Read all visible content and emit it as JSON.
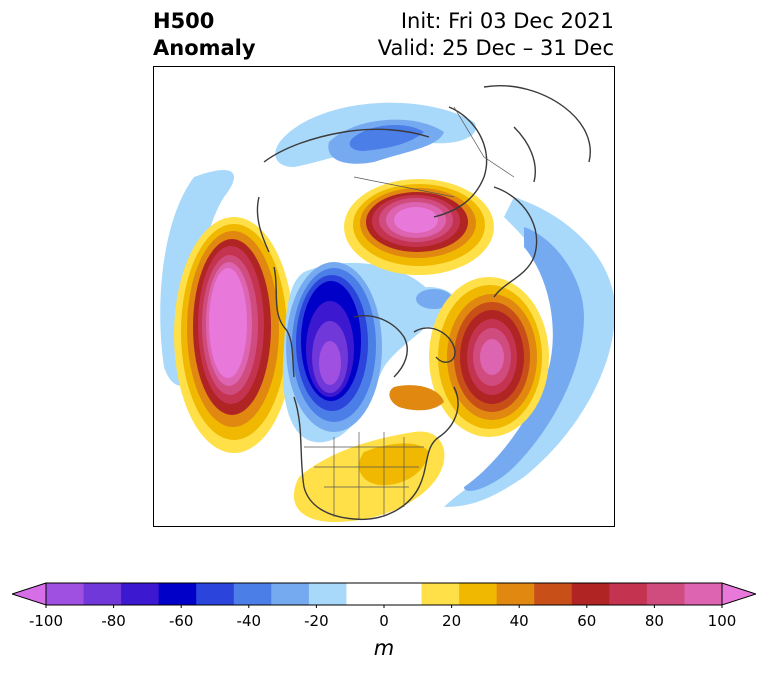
{
  "title": {
    "left_line1": "H500",
    "left_line2": "Anomaly",
    "right_line1": "Init: Fri 03 Dec 2021",
    "right_line2": "Valid: 25 Dec – 31 Dec"
  },
  "colorbar": {
    "units": "m",
    "ticks": [
      "-100",
      "-80",
      "-60",
      "-40",
      "-20",
      "0",
      "20",
      "40",
      "60",
      "80",
      "100"
    ],
    "colors": [
      "#d66ee8",
      "#a050e0",
      "#7038d8",
      "#3c18d0",
      "#0000c8",
      "#2a44dc",
      "#4c7ee8",
      "#76aaf0",
      "#a8d8fa",
      "#ffffff",
      "#ffffff",
      "#ffe048",
      "#f0b800",
      "#e08810",
      "#c85018",
      "#b02424",
      "#c43450",
      "#d04c7e",
      "#dc64b0",
      "#e878da"
    ],
    "range": [
      -100,
      100
    ]
  },
  "map": {
    "projection": "north-polar-stereographic",
    "field": "500 hPa geopotential height anomaly",
    "features": [
      {
        "name": "strong-positive-anomaly-north-pacific",
        "peak_m": 100
      },
      {
        "name": "strong-negative-anomaly-western-north-america",
        "peak_m": -90
      },
      {
        "name": "positive-anomaly-north-atlantic",
        "peak_m": 80
      },
      {
        "name": "positive-anomaly-northern-russia",
        "peak_m": 90
      },
      {
        "name": "weak-positive-anomaly-eastern-us",
        "peak_m": 20
      },
      {
        "name": "weak-negative-anomaly-western-europe",
        "peak_m": -30
      },
      {
        "name": "weak-negative-anomaly-arctic",
        "peak_m": -40
      }
    ]
  }
}
